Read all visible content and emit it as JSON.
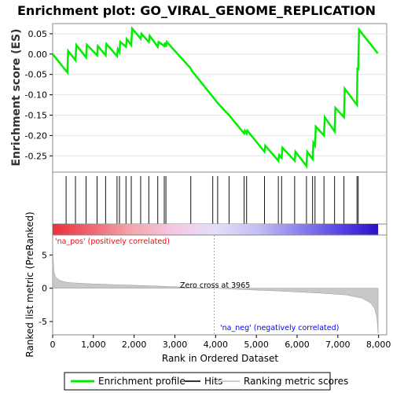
{
  "chart_data": {
    "type": "line",
    "title": "Enrichment plot: GO_VIRAL_GENOME_REPLICATION",
    "es_panel": {
      "ylabel": "Enrichment score (ES)",
      "yticks": [
        0.05,
        0.0,
        -0.05,
        -0.1,
        -0.15,
        -0.2,
        -0.25
      ],
      "ytick_labels": [
        "0.05",
        "0.00",
        "-0.05",
        "-0.10",
        "-0.15",
        "-0.20",
        "-0.25"
      ],
      "ylim": [
        -0.29,
        0.075
      ],
      "xlim": [
        0,
        8200
      ],
      "line_color": "#00ee00",
      "points": [
        [
          0,
          0.0
        ],
        [
          360,
          -0.045
        ],
        [
          380,
          0.008
        ],
        [
          560,
          -0.015
        ],
        [
          580,
          0.022
        ],
        [
          820,
          -0.008
        ],
        [
          840,
          0.023
        ],
        [
          1090,
          -0.003
        ],
        [
          1110,
          0.02
        ],
        [
          1300,
          -0.003
        ],
        [
          1320,
          0.025
        ],
        [
          1580,
          -0.005
        ],
        [
          1600,
          0.012
        ],
        [
          1640,
          0.005
        ],
        [
          1660,
          0.03
        ],
        [
          1800,
          0.018
        ],
        [
          1820,
          0.037
        ],
        [
          1930,
          0.022
        ],
        [
          1950,
          0.063
        ],
        [
          2160,
          0.038
        ],
        [
          2180,
          0.05
        ],
        [
          2360,
          0.03
        ],
        [
          2380,
          0.045
        ],
        [
          2580,
          0.018
        ],
        [
          2600,
          0.03
        ],
        [
          2740,
          0.02
        ],
        [
          2760,
          0.028
        ],
        [
          2780,
          0.018
        ],
        [
          2800,
          0.03
        ],
        [
          3390,
          -0.035
        ],
        [
          3410,
          -0.04
        ],
        [
          3930,
          -0.105
        ],
        [
          4050,
          -0.12
        ],
        [
          4330,
          -0.15
        ],
        [
          4700,
          -0.195
        ],
        [
          4720,
          -0.188
        ],
        [
          4760,
          -0.195
        ],
        [
          4780,
          -0.188
        ],
        [
          5200,
          -0.24
        ],
        [
          5220,
          -0.225
        ],
        [
          5540,
          -0.262
        ],
        [
          5560,
          -0.248
        ],
        [
          5620,
          -0.255
        ],
        [
          5640,
          -0.23
        ],
        [
          5940,
          -0.262
        ],
        [
          5960,
          -0.24
        ],
        [
          6230,
          -0.275
        ],
        [
          6250,
          -0.24
        ],
        [
          6380,
          -0.258
        ],
        [
          6400,
          -0.218
        ],
        [
          6440,
          -0.225
        ],
        [
          6460,
          -0.178
        ],
        [
          6660,
          -0.2
        ],
        [
          6680,
          -0.155
        ],
        [
          6920,
          -0.19
        ],
        [
          6940,
          -0.132
        ],
        [
          7150,
          -0.155
        ],
        [
          7170,
          -0.085
        ],
        [
          7470,
          -0.125
        ],
        [
          7480,
          -0.033
        ],
        [
          7500,
          -0.04
        ],
        [
          7520,
          0.06
        ],
        [
          7980,
          0.002
        ]
      ]
    },
    "hits_panel": {
      "hit_positions": [
        330,
        560,
        820,
        1090,
        1300,
        1580,
        1640,
        1800,
        1930,
        2160,
        2360,
        2580,
        2740,
        2780,
        3390,
        3930,
        4050,
        4330,
        4700,
        4760,
        5200,
        5540,
        5620,
        5940,
        6230,
        6380,
        6440,
        6660,
        6920,
        7150,
        7470,
        7500
      ]
    },
    "ranked_panel": {
      "ylabel": "Ranked list metric (PreRanked)",
      "yticks": [
        5,
        0,
        -5
      ],
      "ytick_labels": [
        "5",
        "0",
        "-5"
      ],
      "ylim": [
        -7,
        8
      ],
      "zero_cross_label": "Zero cross at 3965",
      "zero_cross": 3965,
      "pos_label": "'na_pos' (positively correlated)",
      "neg_label": "'na_neg' (negatively correlated)",
      "curve": [
        [
          0,
          7.5
        ],
        [
          10,
          4.8
        ],
        [
          30,
          2.5
        ],
        [
          80,
          1.6
        ],
        [
          200,
          1.1
        ],
        [
          400,
          0.85
        ],
        [
          800,
          0.7
        ],
        [
          1500,
          0.55
        ],
        [
          2500,
          0.35
        ],
        [
          3500,
          0.1
        ],
        [
          3965,
          0.0
        ],
        [
          4500,
          -0.15
        ],
        [
          5500,
          -0.4
        ],
        [
          6500,
          -0.7
        ],
        [
          7200,
          -1.0
        ],
        [
          7600,
          -1.5
        ],
        [
          7800,
          -2.2
        ],
        [
          7900,
          -3.0
        ],
        [
          7960,
          -4.5
        ],
        [
          7990,
          -6.8
        ]
      ]
    },
    "xaxis": {
      "xlabel": "Rank in Ordered Dataset",
      "xticks": [
        0,
        1000,
        2000,
        3000,
        4000,
        5000,
        6000,
        7000,
        8000
      ],
      "xtick_labels": [
        "0",
        "1,000",
        "2,000",
        "3,000",
        "4,000",
        "5,000",
        "6,000",
        "7,000",
        "8,000"
      ]
    },
    "legend": {
      "items": [
        {
          "label": "Enrichment profile",
          "color": "#00ee00"
        },
        {
          "label": "Hits",
          "color": "#333333"
        },
        {
          "label": "Ranking metric scores",
          "color": "#cccccc"
        }
      ]
    },
    "colors": {
      "pos_label": "#ff0000",
      "neg_label": "#0000ff",
      "bar_stops": [
        "#e8313a",
        "#ee6a74",
        "#f4a9b0",
        "#f5c8e6",
        "#e3e0f8",
        "#c5c0f4",
        "#8f86ec",
        "#5a48e2",
        "#2a10c8"
      ]
    }
  }
}
